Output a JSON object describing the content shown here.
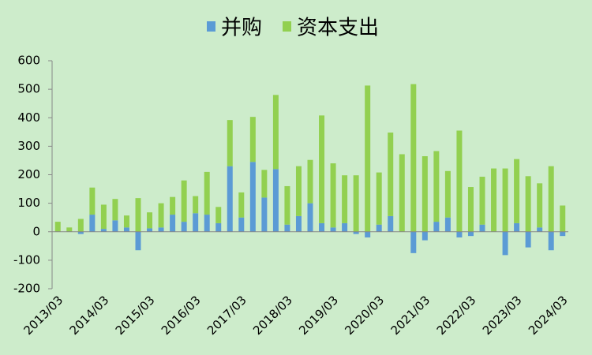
{
  "chart_data": {
    "type": "stacked_bar",
    "categories": [
      "2013/03",
      null,
      null,
      null,
      "2014/03",
      null,
      null,
      null,
      "2015/03",
      null,
      null,
      null,
      "2016/03",
      null,
      null,
      null,
      "2017/03",
      null,
      null,
      null,
      "2018/03",
      null,
      null,
      null,
      "2019/03",
      null,
      null,
      null,
      "2020/03",
      null,
      null,
      null,
      "2021/03",
      null,
      null,
      null,
      "2022/03",
      null,
      null,
      null,
      "2023/03",
      null,
      null,
      null,
      "2024/03"
    ],
    "series": [
      {
        "name": "并购",
        "color": "#5b9bd5",
        "values": [
          0,
          0,
          -8,
          60,
          10,
          40,
          15,
          -65,
          12,
          15,
          60,
          35,
          65,
          60,
          30,
          230,
          50,
          245,
          120,
          220,
          25,
          55,
          100,
          30,
          15,
          30,
          -8,
          -20,
          25,
          55,
          0,
          -75,
          -30,
          35,
          50,
          -20,
          -15,
          25,
          0,
          -82,
          30,
          -55,
          15,
          -65,
          -15
        ]
      },
      {
        "name": "资本支出",
        "color": "#92d050",
        "values": [
          35,
          15,
          45,
          95,
          85,
          75,
          42,
          118,
          56,
          85,
          62,
          145,
          60,
          150,
          57,
          162,
          88,
          158,
          97,
          260,
          135,
          175,
          152,
          378,
          225,
          168,
          198,
          513,
          183,
          293,
          272,
          518,
          265,
          248,
          163,
          355,
          157,
          168,
          222,
          222,
          225,
          195,
          155,
          230,
          92
        ]
      }
    ],
    "ylim": [
      -200,
      600
    ],
    "yticks": [
      -200,
      -100,
      0,
      100,
      200,
      300,
      400,
      500,
      600
    ],
    "grid": false
  }
}
